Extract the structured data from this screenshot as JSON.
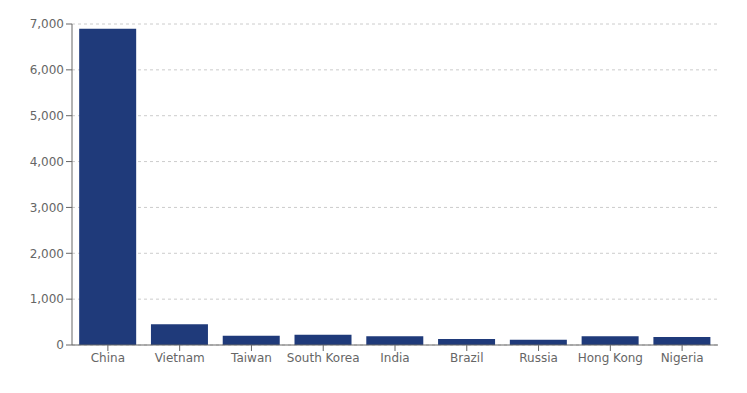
{
  "chart_data": {
    "type": "bar",
    "categories": [
      "China",
      "Vietnam",
      "Taiwan",
      "South Korea",
      "India",
      "Brazil",
      "Russia",
      "Hong Kong",
      "Nigeria"
    ],
    "values": [
      6895,
      450,
      200,
      225,
      190,
      130,
      115,
      190,
      175
    ],
    "color": "#1F3A7A",
    "ylim": [
      0,
      7000
    ],
    "yticks": [
      0,
      {
        "value": 1000,
        "label": "1,000"
      },
      {
        "value": 2000,
        "label": "2,000"
      },
      {
        "value": 3000,
        "label": "3,000"
      },
      {
        "value": 4000,
        "label": "4,000"
      },
      {
        "value": 5000,
        "label": "5,000"
      },
      {
        "value": 6000,
        "label": "6,000"
      },
      {
        "value": 7000,
        "label": "7,000"
      }
    ],
    "grid": true
  }
}
